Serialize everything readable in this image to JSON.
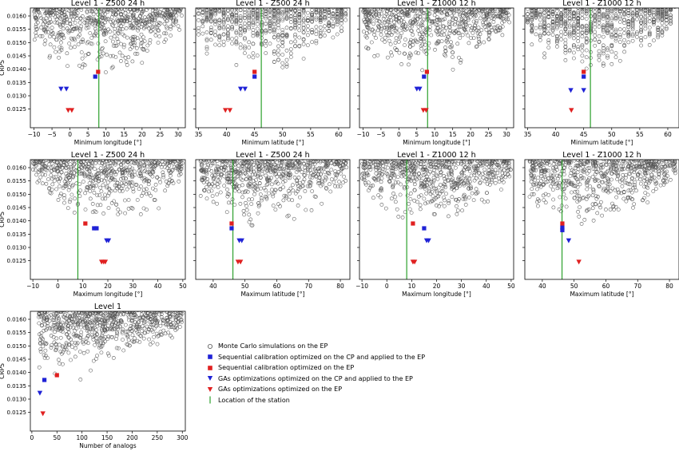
{
  "colors": {
    "mc": "#555555",
    "blue": "#1f22d6",
    "red": "#e02020",
    "station": "#2ca02c"
  },
  "legend": [
    {
      "key": "mc",
      "label": "Monte Carlo simulations on the EP",
      "marker": "circle"
    },
    {
      "key": "blue_sq",
      "label": "Sequential calibration optimized on the CP and applied to the EP",
      "marker": "square-blue"
    },
    {
      "key": "red_sq",
      "label": "Sequential calibration optimized on the EP",
      "marker": "square-red"
    },
    {
      "key": "blue_tri",
      "label": "GAs optimizations optimized on the CP and applied to the EP",
      "marker": "triangle-blue"
    },
    {
      "key": "red_tri",
      "label": "GAs optimizations optimized on the EP",
      "marker": "triangle-red"
    },
    {
      "key": "station",
      "label": "Location of the station",
      "marker": "vline"
    }
  ],
  "chart_data": [
    {
      "type": "scatter",
      "title": "Level 1 - Z500 24 h",
      "xlabel": "Minimum longitude [°]",
      "ylabel": "CRPS",
      "xlim": [
        -11,
        32
      ],
      "ylim": [
        0.0118,
        0.0163
      ],
      "xticks": [
        -10,
        -5,
        0,
        5,
        10,
        15,
        20,
        25,
        30
      ],
      "xtick_labels": [
        "−10",
        "−5",
        "0",
        "5",
        "10",
        "15",
        "20",
        "25",
        "30"
      ],
      "yticks": [
        0.0125,
        0.013,
        0.0135,
        0.014,
        0.0145,
        0.015,
        0.0155,
        0.016
      ],
      "ytick_labels": [
        "0.0125",
        "0.0130",
        "0.0135",
        "0.0140",
        "0.0145",
        "0.0150",
        "0.0155",
        "0.0160"
      ],
      "station": 8.0,
      "mc": {
        "xmin": -10,
        "xmax": 31,
        "xstep": 0,
        "center": 8
      },
      "blue_sq": [
        [
          7.0,
          0.01372
        ]
      ],
      "red_sq": [
        [
          7.8,
          0.0139
        ]
      ],
      "blue_tri": [
        [
          -2.5,
          0.01325
        ],
        [
          -1.0,
          0.01325
        ]
      ],
      "red_tri": [
        [
          -0.5,
          0.01245
        ],
        [
          0.5,
          0.01245
        ]
      ]
    },
    {
      "type": "scatter",
      "title": "Level 1 - Z500 24 h",
      "xlabel": "Minimum latitude [°]",
      "ylabel": "",
      "xlim": [
        34.5,
        62
      ],
      "ylim": [
        0.0118,
        0.0163
      ],
      "xticks": [
        35,
        40,
        45,
        50,
        55,
        60
      ],
      "xtick_labels": [
        "35",
        "40",
        "45",
        "50",
        "55",
        "60"
      ],
      "yticks": [
        0.0125,
        0.013,
        0.0135,
        0.014,
        0.0145,
        0.015,
        0.0155,
        0.016
      ],
      "ytick_labels": [],
      "station": 46.2,
      "mc": {
        "xmin": 35,
        "xmax": 61,
        "xstep": 0.75,
        "center": 46
      },
      "blue_sq": [
        [
          45.0,
          0.01372
        ]
      ],
      "red_sq": [
        [
          45.0,
          0.0139
        ]
      ],
      "blue_tri": [
        [
          42.5,
          0.01325
        ],
        [
          43.3,
          0.01325
        ]
      ],
      "red_tri": [
        [
          39.8,
          0.01245
        ],
        [
          40.6,
          0.01245
        ]
      ]
    },
    {
      "type": "scatter",
      "title": "Level 1 - Z1000 12 h",
      "xlabel": "Minimum longitude [°]",
      "ylabel": "",
      "xlim": [
        -11,
        32
      ],
      "ylim": [
        0.0118,
        0.0163
      ],
      "xticks": [
        -10,
        -5,
        0,
        5,
        10,
        15,
        20,
        25,
        30
      ],
      "xtick_labels": [
        "−10",
        "−5",
        "0",
        "5",
        "10",
        "15",
        "20",
        "25",
        "30"
      ],
      "yticks": [
        0.0125,
        0.013,
        0.0135,
        0.014,
        0.0145,
        0.015,
        0.0155,
        0.016
      ],
      "ytick_labels": [],
      "station": 8.0,
      "mc": {
        "xmin": -10,
        "xmax": 31,
        "xstep": 0,
        "center": 8
      },
      "blue_sq": [
        [
          7.0,
          0.01372
        ]
      ],
      "red_sq": [
        [
          7.8,
          0.0139
        ]
      ],
      "blue_tri": [
        [
          5.0,
          0.01325
        ],
        [
          5.8,
          0.01325
        ]
      ],
      "red_tri": [
        [
          6.8,
          0.01245
        ],
        [
          7.6,
          0.01245
        ]
      ]
    },
    {
      "type": "scatter",
      "title": "Level 1 - Z1000 12 h",
      "xlabel": "Minimum latitude [°]",
      "ylabel": "",
      "xlim": [
        34.5,
        62
      ],
      "ylim": [
        0.0118,
        0.0163
      ],
      "xticks": [
        35,
        40,
        45,
        50,
        55,
        60
      ],
      "xtick_labels": [
        "35",
        "40",
        "45",
        "50",
        "55",
        "60"
      ],
      "yticks": [
        0.0125,
        0.013,
        0.0135,
        0.014,
        0.0145,
        0.015,
        0.0155,
        0.016
      ],
      "ytick_labels": [],
      "station": 46.2,
      "mc": {
        "xmin": 35,
        "xmax": 61,
        "xstep": 0.75,
        "center": 46
      },
      "blue_sq": [
        [
          45.0,
          0.01372
        ]
      ],
      "red_sq": [
        [
          45.0,
          0.0139
        ]
      ],
      "blue_tri": [
        [
          42.7,
          0.0132
        ],
        [
          45.0,
          0.0132
        ]
      ],
      "red_tri": [
        [
          42.8,
          0.01245
        ]
      ]
    },
    {
      "type": "scatter",
      "title": "Level 1 - Z500 24 h",
      "xlabel": "Maximum longitude [°]",
      "ylabel": "CRPS",
      "xlim": [
        -11,
        51
      ],
      "ylim": [
        0.0118,
        0.0163
      ],
      "xticks": [
        -10,
        0,
        10,
        20,
        30,
        40,
        50
      ],
      "xtick_labels": [
        "−10",
        "0",
        "10",
        "20",
        "30",
        "40",
        "50"
      ],
      "yticks": [
        0.0125,
        0.013,
        0.0135,
        0.014,
        0.0145,
        0.015,
        0.0155,
        0.016
      ],
      "ytick_labels": [
        "0.0125",
        "0.0130",
        "0.0135",
        "0.0140",
        "0.0145",
        "0.0150",
        "0.0155",
        "0.0160"
      ],
      "station": 8.0,
      "mc": {
        "xmin": -10,
        "xmax": 50,
        "xstep": 0,
        "center": 20
      },
      "blue_sq": [
        [
          14.5,
          0.01372
        ],
        [
          15.5,
          0.01372
        ]
      ],
      "red_sq": [
        [
          11.0,
          0.0139
        ]
      ],
      "blue_tri": [
        [
          19.5,
          0.01325
        ],
        [
          20.3,
          0.01325
        ]
      ],
      "red_tri": [
        [
          17.5,
          0.01245
        ],
        [
          18.3,
          0.01245
        ],
        [
          19.0,
          0.01245
        ]
      ]
    },
    {
      "type": "scatter",
      "title": "Level 1 - Z500 24 h",
      "xlabel": "Maximum latitude [°]",
      "ylabel": "",
      "xlim": [
        34.5,
        83
      ],
      "ylim": [
        0.0118,
        0.0163
      ],
      "xticks": [
        40,
        50,
        60,
        70,
        80
      ],
      "xtick_labels": [
        "40",
        "50",
        "60",
        "70",
        "80"
      ],
      "yticks": [
        0.0125,
        0.013,
        0.0135,
        0.014,
        0.0145,
        0.015,
        0.0155,
        0.016
      ],
      "ytick_labels": [],
      "station": 46.2,
      "mc": {
        "xmin": 36,
        "xmax": 82,
        "xstep": 0,
        "center": 54
      },
      "blue_sq": [
        [
          45.8,
          0.01372
        ]
      ],
      "red_sq": [
        [
          45.8,
          0.0139
        ]
      ],
      "blue_tri": [
        [
          48.2,
          0.01325
        ],
        [
          49.0,
          0.01325
        ]
      ],
      "red_tri": [
        [
          47.8,
          0.01245
        ],
        [
          48.6,
          0.01245
        ]
      ]
    },
    {
      "type": "scatter",
      "title": "Level 1 - Z1000 12 h",
      "xlabel": "Maximum longitude [°]",
      "ylabel": "",
      "xlim": [
        -11,
        51
      ],
      "ylim": [
        0.0118,
        0.0163
      ],
      "xticks": [
        -10,
        0,
        10,
        20,
        30,
        40,
        50
      ],
      "xtick_labels": [
        "−10",
        "0",
        "10",
        "20",
        "30",
        "40",
        "50"
      ],
      "yticks": [
        0.0125,
        0.013,
        0.0135,
        0.014,
        0.0145,
        0.015,
        0.0155,
        0.016
      ],
      "ytick_labels": [],
      "station": 8.0,
      "mc": {
        "xmin": -10,
        "xmax": 50,
        "xstep": 0,
        "center": 18
      },
      "blue_sq": [
        [
          15.0,
          0.01372
        ]
      ],
      "red_sq": [
        [
          10.5,
          0.0139
        ]
      ],
      "blue_tri": [
        [
          16.0,
          0.01325
        ],
        [
          16.8,
          0.01325
        ]
      ],
      "red_tri": [
        [
          10.5,
          0.01245
        ],
        [
          11.2,
          0.01245
        ]
      ]
    },
    {
      "type": "scatter",
      "title": "Level 1 - Z1000 12 h",
      "xlabel": "Maximum latitude [°]",
      "ylabel": "",
      "xlim": [
        34.5,
        83
      ],
      "ylim": [
        0.0118,
        0.0163
      ],
      "xticks": [
        40,
        50,
        60,
        70,
        80
      ],
      "xtick_labels": [
        "40",
        "50",
        "60",
        "70",
        "80"
      ],
      "yticks": [
        0.0125,
        0.013,
        0.0135,
        0.014,
        0.0145,
        0.015,
        0.0155,
        0.016
      ],
      "ytick_labels": [],
      "station": 46.2,
      "mc": {
        "xmin": 36,
        "xmax": 82,
        "xstep": 0,
        "center": 54
      },
      "blue_sq": [
        [
          46.3,
          0.01365
        ],
        [
          46.3,
          0.01375
        ]
      ],
      "red_sq": [
        [
          46.3,
          0.0139
        ]
      ],
      "blue_tri": [
        [
          48.3,
          0.01325
        ]
      ],
      "red_tri": [
        [
          51.5,
          0.01245
        ]
      ]
    },
    {
      "type": "scatter",
      "title": "Level 1",
      "xlabel": "Number of analogs",
      "ylabel": "CRPS",
      "xlim": [
        -3,
        306
      ],
      "ylim": [
        0.0118,
        0.0163
      ],
      "xticks": [
        0,
        50,
        100,
        150,
        200,
        250,
        300
      ],
      "xtick_labels": [
        "0",
        "50",
        "100",
        "150",
        "200",
        "250",
        "300"
      ],
      "yticks": [
        0.0125,
        0.013,
        0.0135,
        0.014,
        0.0145,
        0.015,
        0.0155,
        0.016
      ],
      "ytick_labels": [
        "0.0125",
        "0.0130",
        "0.0135",
        "0.0140",
        "0.0145",
        "0.0150",
        "0.0155",
        "0.0160"
      ],
      "station": null,
      "mc": {
        "xmin": 12,
        "xmax": 300,
        "xstep": 0,
        "center": 20
      },
      "blue_sq": [
        [
          25.0,
          0.01372
        ]
      ],
      "red_sq": [
        [
          50.0,
          0.0139
        ]
      ],
      "blue_tri": [
        [
          16.0,
          0.01322
        ]
      ],
      "red_tri": [
        [
          22.0,
          0.01245
        ]
      ]
    }
  ]
}
